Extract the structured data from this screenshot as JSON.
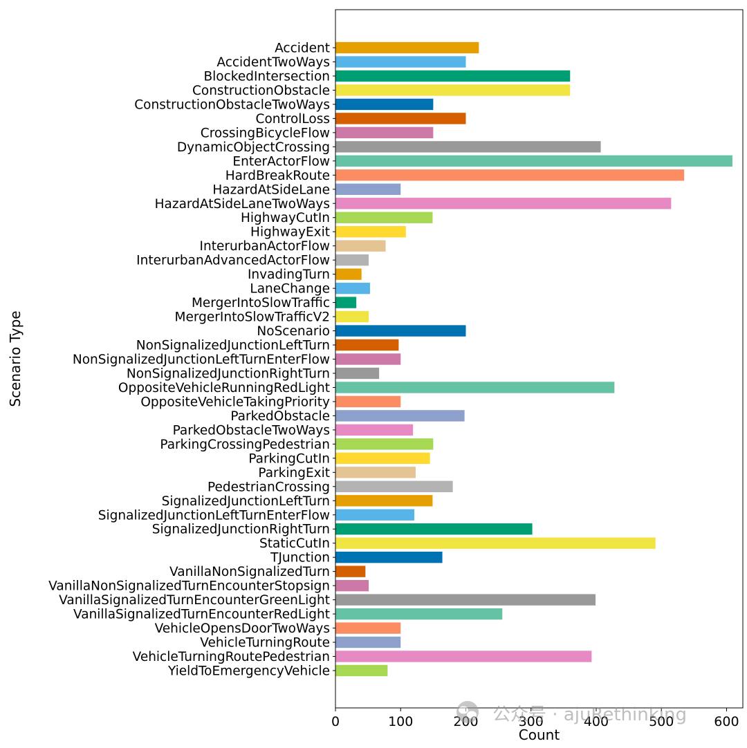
{
  "chart_data": {
    "type": "bar",
    "orientation": "horizontal",
    "xlabel": "Count",
    "ylabel": "Scenario Type",
    "xlim": [
      0,
      625
    ],
    "xticks": [
      0,
      100,
      200,
      300,
      400,
      500,
      600
    ],
    "grid": false,
    "categories": [
      "Accident",
      "AccidentTwoWays",
      "BlockedIntersection",
      "ConstructionObstacle",
      "ConstructionObstacleTwoWays",
      "ControlLoss",
      "CrossingBicycleFlow",
      "DynamicObjectCrossing",
      "EnterActorFlow",
      "HardBreakRoute",
      "HazardAtSideLane",
      "HazardAtSideLaneTwoWays",
      "HighwayCutIn",
      "HighwayExit",
      "InterurbanActorFlow",
      "InterurbanAdvancedActorFlow",
      "InvadingTurn",
      "LaneChange",
      "MergerIntoSlowTraffic",
      "MergerIntoSlowTrafficV2",
      "NoScenario",
      "NonSignalizedJunctionLeftTurn",
      "NonSignalizedJunctionLeftTurnEnterFlow",
      "NonSignalizedJunctionRightTurn",
      "OppositeVehicleRunningRedLight",
      "OppositeVehicleTakingPriority",
      "ParkedObstacle",
      "ParkedObstacleTwoWays",
      "ParkingCrossingPedestrian",
      "ParkingCutIn",
      "ParkingExit",
      "PedestrianCrossing",
      "SignalizedJunctionLeftTurn",
      "SignalizedJunctionLeftTurnEnterFlow",
      "SignalizedJunctionRightTurn",
      "StaticCutIn",
      "TJunction",
      "VanillaNonSignalizedTurn",
      "VanillaNonSignalizedTurnEncounterStopsign",
      "VanillaSignalizedTurnEncounterGreenLight",
      "VanillaSignalizedTurnEncounterRedLight",
      "VehicleOpensDoorTwoWays",
      "VehicleTurningRoute",
      "VehicleTurningRoutePedestrian",
      "YieldToEmergencyVehicle"
    ],
    "values": [
      220,
      200,
      360,
      360,
      150,
      200,
      150,
      407,
      609,
      535,
      100,
      515,
      149,
      108,
      77,
      51,
      40,
      53,
      32,
      51,
      200,
      97,
      100,
      67,
      428,
      100,
      198,
      119,
      150,
      145,
      123,
      180,
      149,
      121,
      302,
      491,
      164,
      46,
      51,
      399,
      256,
      100,
      100,
      393,
      80
    ],
    "colors": [
      "#E69F00",
      "#56B4E9",
      "#009E73",
      "#F0E442",
      "#0072B2",
      "#D55E00",
      "#CC79A7",
      "#999999",
      "#66C2A5",
      "#FC8D62",
      "#8DA0CB",
      "#E78AC3",
      "#A6D854",
      "#FFD92F",
      "#E5C494",
      "#B3B3B3"
    ]
  },
  "watermark": {
    "text": "公众号 · ajuRethinking",
    "icon": "wechat-icon"
  }
}
